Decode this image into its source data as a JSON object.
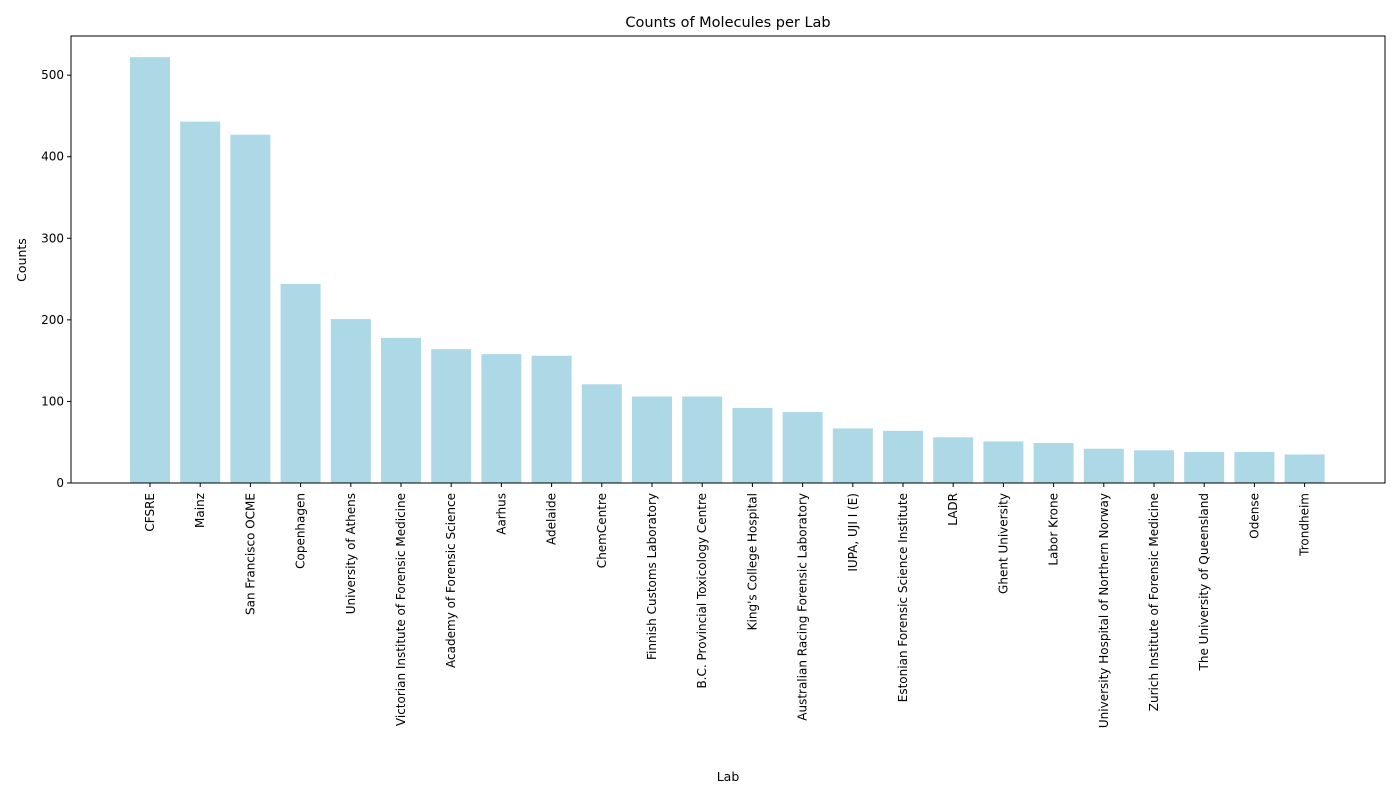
{
  "chart_data": {
    "type": "bar",
    "title": "Counts of Molecules per Lab",
    "xlabel": "Lab",
    "ylabel": "Counts",
    "ylim": [
      0,
      548
    ],
    "yticks": [
      0,
      100,
      200,
      300,
      400,
      500
    ],
    "ytick_labels": [
      "0",
      "100",
      "200",
      "300",
      "400",
      "500"
    ],
    "grid": false,
    "bar_color": "#add8e6",
    "categories": [
      "CFSRE",
      "Mainz",
      "San Francisco OCME",
      "Copenhagen",
      "University of Athens",
      "Victorian Institute of Forensic Medicine",
      "Academy of Forensic Science",
      "Aarhus",
      "Adelaide",
      "ChemCentre",
      "Finnish Customs Laboratory",
      "B.C. Provincial Toxicology Centre",
      "King's College Hospital",
      "Australian Racing Forensic Laboratory",
      "IUPA, UJI I (E)",
      "Estonian Forensic Science Institute",
      "LADR",
      "Ghent University",
      "Labor Krone",
      "University Hospital of Northern Norway",
      "Zurich Institute of Forensic Medicine",
      "The University of Queensland",
      "Odense",
      "Trondheim"
    ],
    "values": [
      522,
      443,
      427,
      244,
      201,
      178,
      164,
      158,
      156,
      121,
      106,
      106,
      92,
      87,
      67,
      64,
      56,
      51,
      49,
      42,
      40,
      38,
      38,
      35
    ]
  }
}
